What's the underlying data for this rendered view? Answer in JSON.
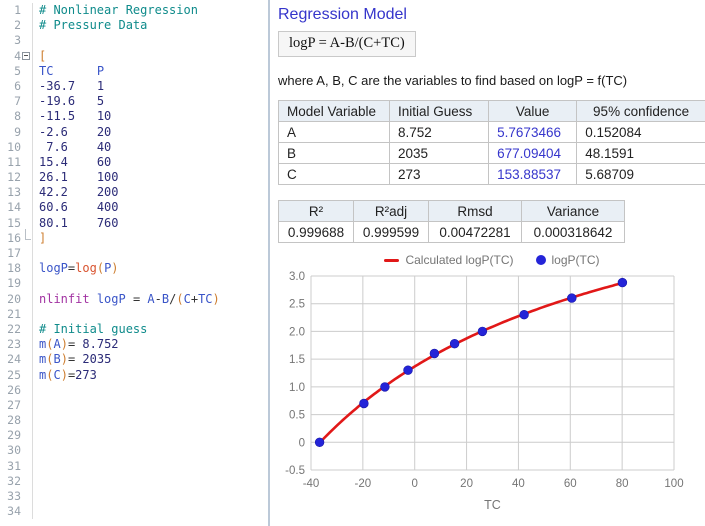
{
  "editor": {
    "lines": [
      {
        "n": 1,
        "toks": [
          [
            "comment",
            "# Nonlinear Regression"
          ]
        ]
      },
      {
        "n": 2,
        "toks": [
          [
            "comment",
            "# Pressure Data"
          ]
        ]
      },
      {
        "n": 3,
        "toks": []
      },
      {
        "n": 4,
        "fold": "start",
        "toks": [
          [
            "br",
            "["
          ]
        ]
      },
      {
        "n": 5,
        "toks": [
          [
            "var",
            "TC"
          ],
          [
            "plain",
            "      "
          ],
          [
            "var",
            "P"
          ]
        ]
      },
      {
        "n": 6,
        "toks": [
          [
            "num",
            "-36.7"
          ],
          [
            "plain",
            "   "
          ],
          [
            "num",
            "1"
          ]
        ]
      },
      {
        "n": 7,
        "toks": [
          [
            "num",
            "-19.6"
          ],
          [
            "plain",
            "   "
          ],
          [
            "num",
            "5"
          ]
        ]
      },
      {
        "n": 8,
        "toks": [
          [
            "num",
            "-11.5"
          ],
          [
            "plain",
            "   "
          ],
          [
            "num",
            "10"
          ]
        ]
      },
      {
        "n": 9,
        "toks": [
          [
            "num",
            "-2.6"
          ],
          [
            "plain",
            "    "
          ],
          [
            "num",
            "20"
          ]
        ]
      },
      {
        "n": 10,
        "toks": [
          [
            "plain",
            " "
          ],
          [
            "num",
            "7.6"
          ],
          [
            "plain",
            "    "
          ],
          [
            "num",
            "40"
          ]
        ]
      },
      {
        "n": 11,
        "toks": [
          [
            "num",
            "15.4"
          ],
          [
            "plain",
            "    "
          ],
          [
            "num",
            "60"
          ]
        ]
      },
      {
        "n": 12,
        "toks": [
          [
            "num",
            "26.1"
          ],
          [
            "plain",
            "    "
          ],
          [
            "num",
            "100"
          ]
        ]
      },
      {
        "n": 13,
        "toks": [
          [
            "num",
            "42.2"
          ],
          [
            "plain",
            "    "
          ],
          [
            "num",
            "200"
          ]
        ]
      },
      {
        "n": 14,
        "toks": [
          [
            "num",
            "60.6"
          ],
          [
            "plain",
            "    "
          ],
          [
            "num",
            "400"
          ]
        ]
      },
      {
        "n": 15,
        "toks": [
          [
            "num",
            "80.1"
          ],
          [
            "plain",
            "    "
          ],
          [
            "num",
            "760"
          ]
        ]
      },
      {
        "n": 16,
        "fold": "end",
        "toks": [
          [
            "br",
            "]"
          ]
        ]
      },
      {
        "n": 17,
        "toks": []
      },
      {
        "n": 18,
        "toks": [
          [
            "var",
            "logP"
          ],
          [
            "op",
            "="
          ],
          [
            "fn",
            "log"
          ],
          [
            "br",
            "("
          ],
          [
            "var",
            "P"
          ],
          [
            "br",
            ")"
          ]
        ]
      },
      {
        "n": 19,
        "toks": []
      },
      {
        "n": 20,
        "toks": [
          [
            "kw",
            "nlinfit"
          ],
          [
            "plain",
            " "
          ],
          [
            "var",
            "logP"
          ],
          [
            "plain",
            " "
          ],
          [
            "op",
            "="
          ],
          [
            "plain",
            " "
          ],
          [
            "var",
            "A"
          ],
          [
            "op",
            "-"
          ],
          [
            "var",
            "B"
          ],
          [
            "op",
            "/"
          ],
          [
            "br",
            "("
          ],
          [
            "var",
            "C"
          ],
          [
            "op",
            "+"
          ],
          [
            "var",
            "TC"
          ],
          [
            "br",
            ")"
          ]
        ]
      },
      {
        "n": 21,
        "toks": []
      },
      {
        "n": 22,
        "toks": [
          [
            "comment",
            "# Initial guess"
          ]
        ]
      },
      {
        "n": 23,
        "toks": [
          [
            "var",
            "m"
          ],
          [
            "br",
            "("
          ],
          [
            "var",
            "A"
          ],
          [
            "br",
            ")"
          ],
          [
            "op",
            "="
          ],
          [
            "plain",
            " "
          ],
          [
            "num",
            "8.752"
          ]
        ]
      },
      {
        "n": 24,
        "toks": [
          [
            "var",
            "m"
          ],
          [
            "br",
            "("
          ],
          [
            "var",
            "B"
          ],
          [
            "br",
            ")"
          ],
          [
            "op",
            "="
          ],
          [
            "plain",
            " "
          ],
          [
            "num",
            "2035"
          ]
        ]
      },
      {
        "n": 25,
        "toks": [
          [
            "var",
            "m"
          ],
          [
            "br",
            "("
          ],
          [
            "var",
            "C"
          ],
          [
            "br",
            ")"
          ],
          [
            "op",
            "="
          ],
          [
            "num",
            "273"
          ]
        ]
      },
      {
        "n": 26,
        "toks": []
      },
      {
        "n": 27,
        "toks": []
      },
      {
        "n": 28,
        "toks": []
      },
      {
        "n": 29,
        "toks": []
      },
      {
        "n": 30,
        "toks": []
      },
      {
        "n": 31,
        "toks": []
      },
      {
        "n": 32,
        "toks": []
      },
      {
        "n": 33,
        "toks": []
      },
      {
        "n": 34,
        "toks": []
      }
    ]
  },
  "panel": {
    "title": "Regression Model",
    "formula": "logP = A-B/(C+TC)",
    "subtitle": "where A, B, C are the variables to find based on logP = f(TC)",
    "variables_table": {
      "headers": [
        "Model Variable",
        "Initial Guess",
        "Value",
        "95% confidence"
      ],
      "rows": [
        [
          "A",
          "8.752",
          "5.7673466",
          "0.152084"
        ],
        [
          "B",
          "2035",
          "677.09404",
          "48.1591"
        ],
        [
          "C",
          "273",
          "153.88537",
          "5.68709"
        ]
      ]
    },
    "stats_table": {
      "headers": [
        "R²",
        "R²adj",
        "Rmsd",
        "Variance"
      ],
      "values": [
        "0.999688",
        "0.999599",
        "0.00472281",
        "0.000318642"
      ]
    }
  },
  "chart_data": {
    "type": "scatter",
    "title": "",
    "xlabel": "TC",
    "ylabel": "",
    "xlim": [
      -40,
      100
    ],
    "ylim": [
      -0.5,
      3.0
    ],
    "grid": true,
    "legend_position": "top-center",
    "x_tick_labels": [
      "-40",
      "-20",
      "0",
      "20",
      "40",
      "60",
      "80",
      "100"
    ],
    "y_tick_labels": [
      "-0.5",
      "0",
      "0.5",
      "1.0",
      "1.5",
      "2.0",
      "2.5",
      "3.0"
    ],
    "colors": {
      "fit_line": "#e11818",
      "points": "#2424d8",
      "grid": "#cccccc",
      "axis_text": "#757575"
    },
    "legend": [
      {
        "label": "Calculated logP(TC)",
        "type": "line",
        "color": "#e11818"
      },
      {
        "label": "logP(TC)",
        "type": "point",
        "color": "#2424d8"
      }
    ],
    "series": [
      {
        "name": "logP(TC)",
        "type": "points",
        "x": [
          -36.7,
          -19.6,
          -11.5,
          -2.6,
          7.6,
          15.4,
          26.1,
          42.2,
          60.6,
          80.1
        ],
        "y": [
          0,
          0.69897,
          1,
          1.30103,
          1.60206,
          1.77815,
          2,
          2.30103,
          2.60206,
          2.88081
        ]
      },
      {
        "name": "Calculated logP(TC)",
        "type": "fit-line",
        "model": "logP = A - B/(C+TC)",
        "A": 5.7673466,
        "B": 677.09404,
        "C": 153.88537,
        "t_range": [
          -36.7,
          80.1
        ]
      }
    ]
  }
}
